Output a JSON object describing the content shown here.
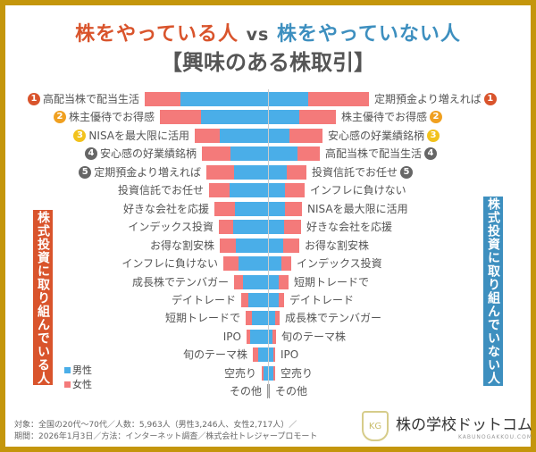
{
  "title": {
    "investors": "株をやっている人",
    "vs": "vs",
    "non_investors": "株をやっていない人",
    "subtitle": "【興味のある株取引】"
  },
  "side_labels": {
    "left": "株式投資に取り組んでいる人",
    "right": "株式投資に取り組んでいない人",
    "left_color": "#d9542c",
    "right_color": "#3d8fbf"
  },
  "legend": {
    "male": "男性",
    "female": "女性"
  },
  "colors": {
    "male": "#4aaee8",
    "female": "#f47a7a",
    "other": "#999999",
    "border": "#c4960c",
    "rank1": "#d9542c",
    "rank2": "#f0a020",
    "rank3": "#f2c21c",
    "rank_other": "#666666"
  },
  "chart_data": {
    "type": "bar",
    "orientation": "horizontal-butterfly",
    "note_units": "relative bar length (no axis printed)",
    "left": {
      "name": "株式投資に取り組んでいる人",
      "categories": [
        "高配当株で配当生活",
        "株主優待でお得感",
        "NISAを最大限に活用",
        "安心感の好業績銘柄",
        "定期預金より増えれば",
        "投資信託でお任せ",
        "好きな会社を応援",
        "インデックス投資",
        "お得な割安株",
        "インフレに負けない",
        "成長株でテンバガー",
        "デイトレード",
        "短期トレードで",
        "IPO",
        "旬のテーマ株",
        "空売り",
        "その他"
      ],
      "ranks": [
        "1",
        "2",
        "3",
        "4",
        "5",
        "",
        "",
        "",
        "",
        "",
        "",
        "",
        "",
        "",
        "",
        "",
        ""
      ],
      "series": [
        {
          "name": "男性",
          "values": [
            98,
            75,
            54,
            42,
            38,
            43,
            37,
            39,
            36,
            33,
            28,
            22,
            18,
            20,
            11,
            5,
            1
          ]
        },
        {
          "name": "女性",
          "values": [
            40,
            46,
            28,
            32,
            31,
            23,
            23,
            16,
            18,
            17,
            10,
            8,
            7,
            4,
            6,
            2,
            0
          ]
        }
      ]
    },
    "right": {
      "name": "株式投資に取り組んでいない人",
      "categories": [
        "定期預金より増えれば",
        "株主優待でお得感",
        "安心感の好業績銘柄",
        "高配当株で配当生活",
        "投資信託でお任せ",
        "インフレに負けない",
        "NISAを最大限に活用",
        "好きな会社を応援",
        "お得な割安株",
        "インデックス投資",
        "短期トレードで",
        "デイトレード",
        "成長株でテンバガー",
        "旬のテーマ株",
        "IPO",
        "空売り",
        "その他"
      ],
      "ranks": [
        "1",
        "2",
        "3",
        "4",
        "5",
        "",
        "",
        "",
        "",
        "",
        "",
        "",
        "",
        "",
        "",
        "",
        ""
      ],
      "series": [
        {
          "name": "男性",
          "values": [
            44,
            34,
            23,
            32,
            20,
            18,
            18,
            17,
            16,
            14,
            11,
            11,
            7,
            4,
            5,
            5,
            1
          ]
        },
        {
          "name": "女性",
          "values": [
            68,
            41,
            37,
            25,
            22,
            22,
            19,
            19,
            18,
            11,
            11,
            6,
            5,
            4,
            2,
            2,
            0
          ]
        }
      ]
    }
  },
  "footer": {
    "line1": "対象：全国の20代〜70代／人数：5,963人（男性3,246人、女性2,717人）／",
    "line2": "期間：2026年1月3日／方法：インターネット調査／株式会社トレジャープロモート"
  },
  "logo": {
    "mark": "KG",
    "name": "株の学校ドットコム",
    "url": "KABUNOGAKKOU.COM"
  }
}
